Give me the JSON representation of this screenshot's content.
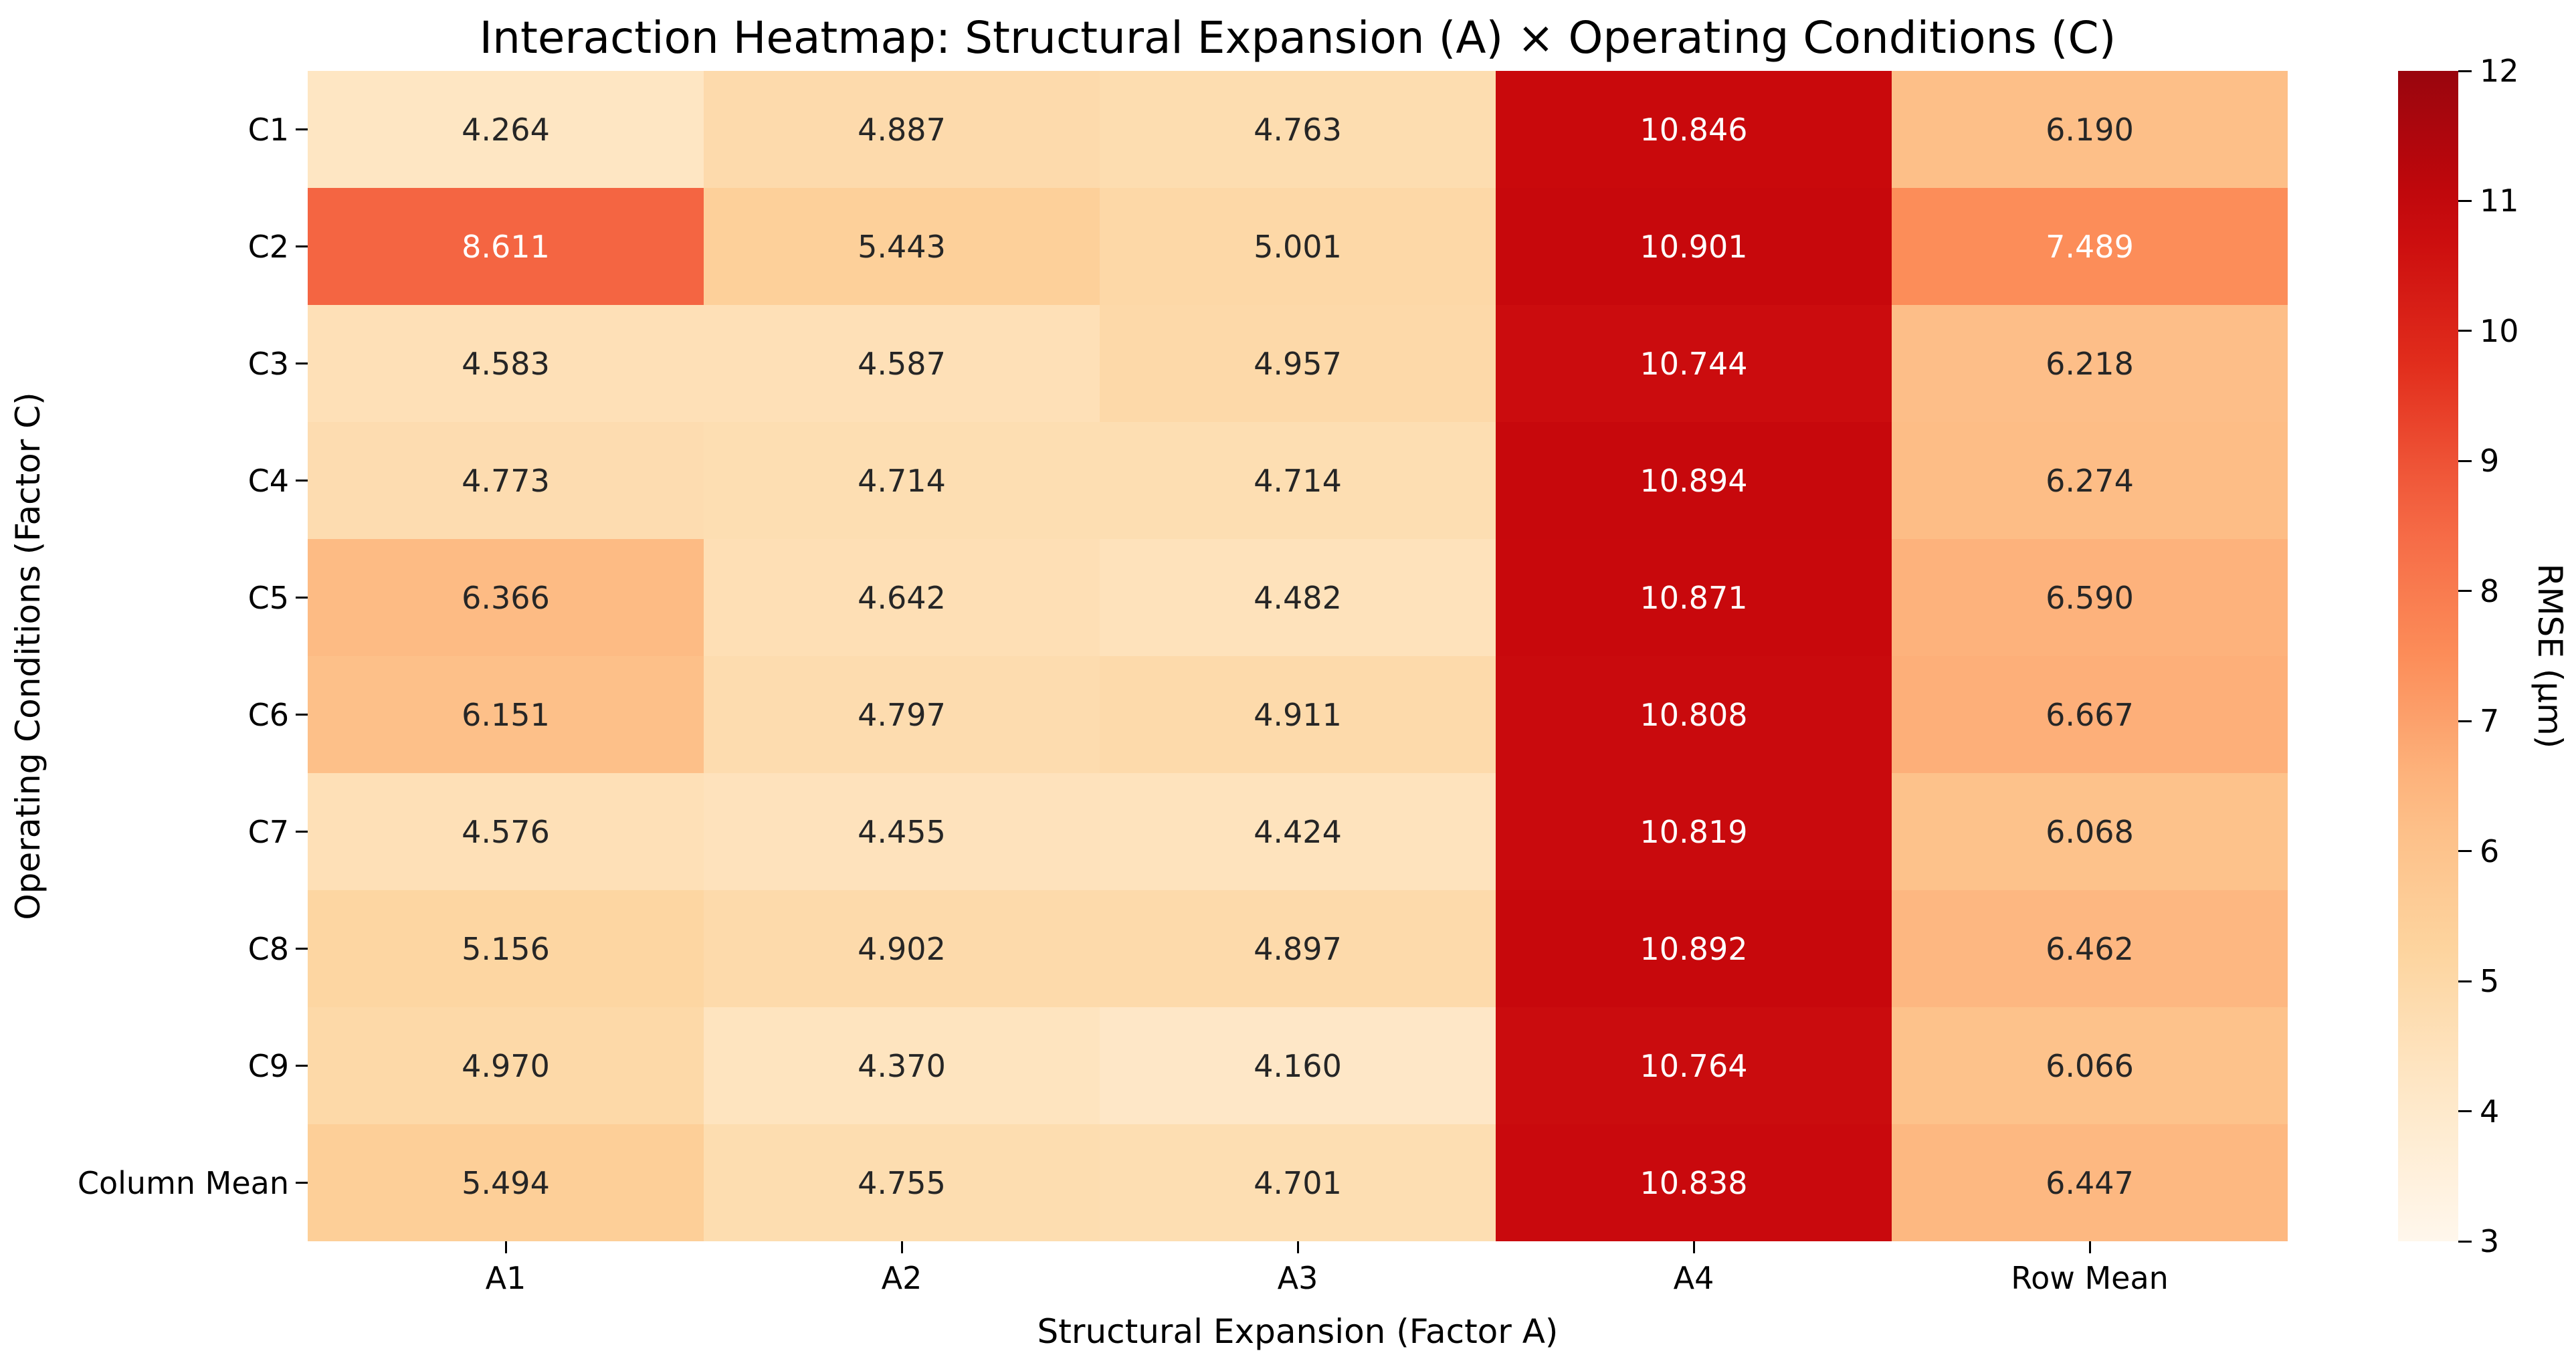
{
  "title": "Interaction Heatmap: Structural Expansion (A) × Operating Conditions (C)",
  "chart_data": {
    "type": "heatmap",
    "title": "Interaction Heatmap: Structural Expansion (A) × Operating Conditions (C)",
    "xlabel": "Structural Expansion (Factor A)",
    "ylabel": "Operating Conditions (Factor C)",
    "columns": [
      "A1",
      "A2",
      "A3",
      "A4",
      "Row Mean"
    ],
    "rows": [
      "C1",
      "C2",
      "C3",
      "C4",
      "C5",
      "C6",
      "C7",
      "C8",
      "C9",
      "Column Mean"
    ],
    "values": [
      [
        4.264,
        4.887,
        4.763,
        10.846,
        6.19
      ],
      [
        8.611,
        5.443,
        5.001,
        10.901,
        7.489
      ],
      [
        4.583,
        4.587,
        4.957,
        10.744,
        6.218
      ],
      [
        4.773,
        4.714,
        4.714,
        10.894,
        6.274
      ],
      [
        6.366,
        4.642,
        4.482,
        10.871,
        6.59
      ],
      [
        6.151,
        4.797,
        4.911,
        10.808,
        6.667
      ],
      [
        4.576,
        4.455,
        4.424,
        10.819,
        6.068
      ],
      [
        5.156,
        4.902,
        4.897,
        10.892,
        6.462
      ],
      [
        4.97,
        4.37,
        4.16,
        10.764,
        6.066
      ],
      [
        5.494,
        4.755,
        4.701,
        10.838,
        6.447
      ]
    ],
    "value_decimals": 3,
    "grid": false,
    "legend_position": "right-colorbar",
    "colorbar": {
      "label": "RMSE (μm)",
      "vmin": 3,
      "vmax": 12,
      "ticks": [
        3,
        4,
        5,
        6,
        7,
        8,
        9,
        10,
        11,
        12
      ]
    },
    "colormap": {
      "name": "OrRd-like",
      "stops": [
        {
          "t": 0.0,
          "rgb": [
            255,
            247,
            236
          ]
        },
        {
          "t": 0.125,
          "rgb": [
            254,
            232,
            200
          ]
        },
        {
          "t": 0.25,
          "rgb": [
            253,
            212,
            158
          ]
        },
        {
          "t": 0.375,
          "rgb": [
            253,
            187,
            132
          ]
        },
        {
          "t": 0.5,
          "rgb": [
            252,
            141,
            89
          ]
        },
        {
          "t": 0.625,
          "rgb": [
            244,
            100,
            66
          ]
        },
        {
          "t": 0.75,
          "rgb": [
            225,
            45,
            28
          ]
        },
        {
          "t": 0.875,
          "rgb": [
            200,
            8,
            12
          ]
        },
        {
          "t": 1.0,
          "rgb": [
            153,
            5,
            13
          ]
        }
      ]
    },
    "annotation_color_dark": "#262626",
    "annotation_color_light": "#ffffff",
    "light_text_threshold": 7.2
  }
}
